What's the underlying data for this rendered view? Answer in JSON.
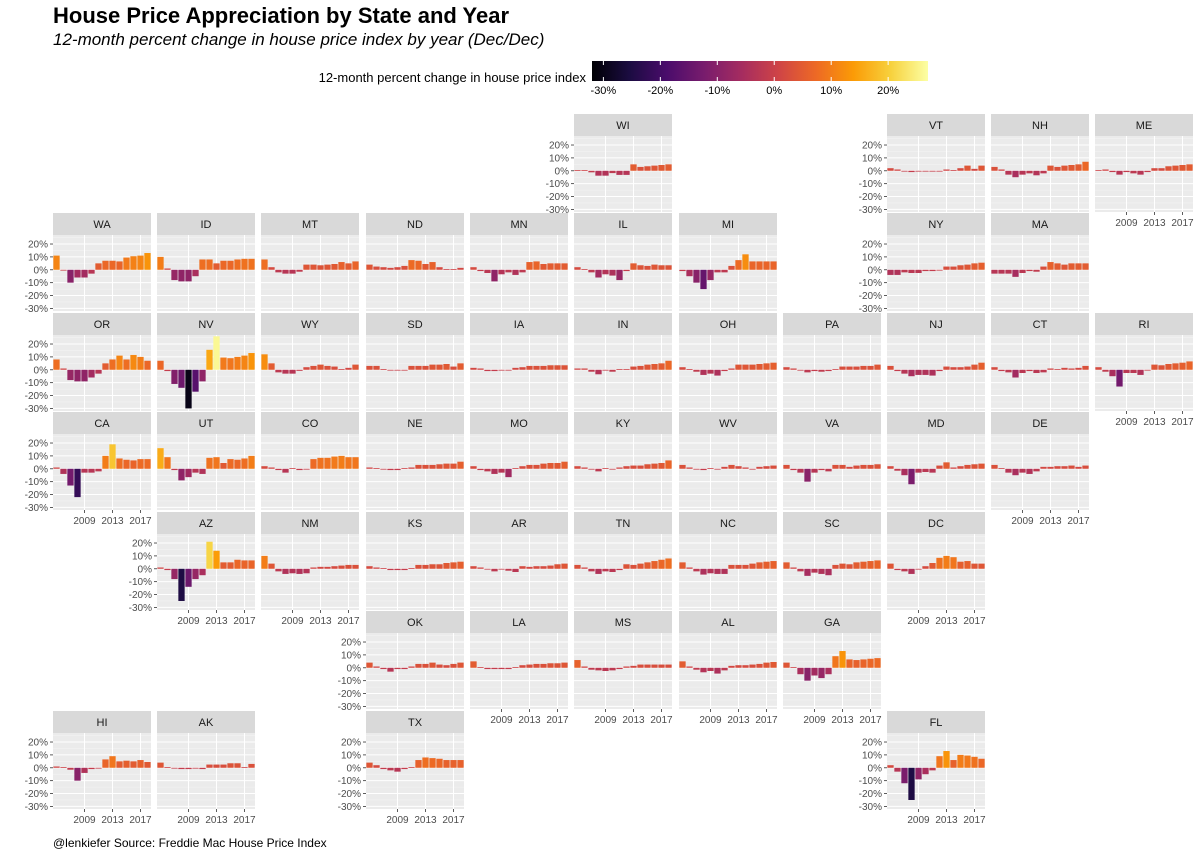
{
  "title": "House Price Appreciation by State and Year",
  "subtitle": "12-month percent change in house price index by year (Dec/Dec)",
  "caption": "@lenkiefer Source: Freddie Mac House Price Index",
  "legend": {
    "title": "12-month percent change in house price index",
    "tick_labels": [
      "-30%",
      "-20%",
      "-10%",
      "0%",
      "10%",
      "20%"
    ],
    "tick_values": [
      -30,
      -20,
      -10,
      0,
      10,
      20
    ],
    "range": [
      -32,
      27
    ],
    "colormap": "inferno",
    "colors": [
      "#000004",
      "#1b0c41",
      "#4a0c6b",
      "#781c6d",
      "#a52c60",
      "#cf4446",
      "#ed6925",
      "#fb9b06",
      "#f7d13d",
      "#fcffa4"
    ]
  },
  "chart_data": {
    "type": "bar",
    "layout": "faceted small multiples arranged as a US state grid map",
    "years": [
      2005,
      2006,
      2007,
      2008,
      2009,
      2010,
      2011,
      2012,
      2013,
      2014,
      2015,
      2016,
      2017,
      2018
    ],
    "x_tick_labels": [
      "2009",
      "2013",
      "2017"
    ],
    "y_tick_labels": [
      "20%",
      "10%",
      "0%",
      "-10%",
      "-20%",
      "-30%"
    ],
    "y_tick_values": [
      20,
      10,
      0,
      -10,
      -20,
      -30
    ],
    "ylim": [
      -32,
      27
    ],
    "grid": true,
    "legend_position": "top",
    "series": [
      {
        "name": "WI",
        "values": [
          0.5,
          0.6,
          -1.2,
          -3.8,
          -3.8,
          -1.8,
          -3.2,
          -3.2,
          5.0,
          3.0,
          3.5,
          4.0,
          4.5,
          5.0
        ]
      },
      {
        "name": "VT",
        "values": [
          2.0,
          1.0,
          -0.5,
          -1.0,
          -0.5,
          -0.3,
          -0.5,
          -0.2,
          1.0,
          0.5,
          2.0,
          4.0,
          1.5,
          4.0
        ]
      },
      {
        "name": "NH",
        "values": [
          3.0,
          1.0,
          -3.0,
          -5.0,
          -3.0,
          -2.0,
          -3.5,
          -2.0,
          4.0,
          3.0,
          4.0,
          4.5,
          5.0,
          7.0
        ]
      },
      {
        "name": "ME",
        "values": [
          0.5,
          1.0,
          -1.0,
          -3.0,
          -1.0,
          -2.0,
          -3.0,
          -1.0,
          2.0,
          2.0,
          3.5,
          4.0,
          4.5,
          5.0
        ]
      },
      {
        "name": "WA",
        "values": [
          11.0,
          0.0,
          -10.0,
          -6.0,
          -6.0,
          -3.0,
          5.0,
          7.0,
          7.0,
          6.5,
          9.5,
          10.5,
          11.0,
          13.0
        ]
      },
      {
        "name": "ID",
        "values": [
          10.0,
          1.0,
          -8.0,
          -9.0,
          -9.0,
          -5.0,
          8.0,
          8.0,
          5.0,
          7.0,
          7.0,
          8.0,
          8.5,
          8.5
        ]
      },
      {
        "name": "MT",
        "values": [
          8.0,
          2.0,
          -2.0,
          -3.0,
          -3.0,
          -1.5,
          4.0,
          4.0,
          3.5,
          4.0,
          4.5,
          6.0,
          5.0,
          6.5
        ]
      },
      {
        "name": "ND",
        "values": [
          4.0,
          2.5,
          2.0,
          1.5,
          2.0,
          3.0,
          7.5,
          7.0,
          4.5,
          6.0,
          2.0,
          0.5,
          0.5,
          1.5
        ]
      },
      {
        "name": "MN",
        "values": [
          2.0,
          -1.0,
          -2.5,
          -9.0,
          -3.5,
          -2.0,
          -4.0,
          -2.0,
          6.0,
          6.5,
          4.5,
          5.0,
          5.0,
          5.0
        ]
      },
      {
        "name": "IL",
        "values": [
          2.0,
          0.5,
          -2.0,
          -6.0,
          -3.5,
          -4.5,
          -8.0,
          -1.0,
          5.0,
          3.5,
          3.0,
          4.0,
          3.5,
          3.5
        ]
      },
      {
        "name": "MI",
        "values": [
          -1.0,
          -5.0,
          -10.0,
          -15.0,
          -8.0,
          -2.0,
          -2.0,
          3.0,
          7.5,
          12.0,
          6.5,
          6.5,
          6.5,
          6.5
        ]
      },
      {
        "name": "NY",
        "values": [
          -4.0,
          -4.0,
          -2.0,
          -2.5,
          -2.5,
          -1.0,
          -1.0,
          0.0,
          2.5,
          2.5,
          3.5,
          4.0,
          5.0,
          5.5
        ]
      },
      {
        "name": "MA",
        "values": [
          -3.0,
          -3.0,
          -3.0,
          -5.5,
          -2.5,
          -1.0,
          -1.5,
          2.5,
          6.0,
          5.0,
          4.0,
          5.0,
          5.0,
          5.0
        ]
      },
      {
        "name": "OR",
        "values": [
          8.0,
          1.0,
          -8.0,
          -9.0,
          -9.0,
          -6.0,
          -3.0,
          5.0,
          8.0,
          11.0,
          8.0,
          11.5,
          10.0,
          7.0
        ]
      },
      {
        "name": "NV",
        "values": [
          7.0,
          -1.0,
          -11.0,
          -14.0,
          -30.0,
          -17.0,
          -9.0,
          15.5,
          26.0,
          9.5,
          9.0,
          10.0,
          11.0,
          13.0
        ]
      },
      {
        "name": "WY",
        "values": [
          12.0,
          5.0,
          -2.0,
          -3.0,
          -3.0,
          -0.8,
          2.0,
          3.0,
          4.0,
          3.0,
          2.5,
          0.5,
          1.5,
          4.0
        ]
      },
      {
        "name": "SD",
        "values": [
          3.0,
          3.0,
          0.5,
          -0.2,
          -0.5,
          0.0,
          3.0,
          3.0,
          3.0,
          4.0,
          4.0,
          4.5,
          2.5,
          5.0
        ]
      },
      {
        "name": "IA",
        "values": [
          1.5,
          1.0,
          -1.0,
          -1.0,
          -0.5,
          -0.5,
          1.5,
          2.0,
          3.0,
          3.0,
          3.0,
          3.5,
          3.5,
          3.5
        ]
      },
      {
        "name": "IN",
        "values": [
          1.0,
          1.0,
          -1.5,
          -3.5,
          -0.5,
          -1.5,
          0.5,
          0.5,
          2.5,
          3.0,
          4.0,
          4.5,
          5.0,
          7.0
        ]
      },
      {
        "name": "OH",
        "values": [
          2.0,
          0.5,
          -1.5,
          -4.0,
          -3.0,
          -4.5,
          -1.0,
          1.0,
          4.0,
          4.0,
          4.0,
          4.5,
          5.0,
          5.5
        ]
      },
      {
        "name": "PA",
        "values": [
          2.0,
          1.0,
          -0.5,
          -2.0,
          -1.0,
          -1.5,
          -1.0,
          0.5,
          2.5,
          2.5,
          2.5,
          3.0,
          3.0,
          4.0
        ]
      },
      {
        "name": "NJ",
        "values": [
          3.0,
          -1.0,
          -3.0,
          -5.0,
          -4.0,
          -4.0,
          -4.5,
          -1.0,
          2.5,
          2.0,
          2.0,
          2.5,
          4.0,
          5.5
        ]
      },
      {
        "name": "CT",
        "values": [
          2.0,
          -1.0,
          -2.0,
          -6.0,
          -2.5,
          -1.0,
          -2.5,
          -2.0,
          1.0,
          0.5,
          1.5,
          1.0,
          1.5,
          3.0
        ]
      },
      {
        "name": "RI",
        "values": [
          2.0,
          -1.5,
          -5.0,
          -13.0,
          -2.5,
          -2.5,
          -4.0,
          -0.5,
          4.0,
          3.5,
          4.5,
          5.0,
          5.5,
          6.5
        ]
      },
      {
        "name": "CA",
        "values": [
          1.0,
          -4.0,
          -13.0,
          -22.0,
          -3.0,
          -3.0,
          -2.0,
          10.0,
          19.0,
          8.0,
          7.0,
          6.5,
          7.5,
          7.5
        ]
      },
      {
        "name": "UT",
        "values": [
          16.0,
          9.0,
          -1.0,
          -9.0,
          -6.5,
          -3.0,
          -4.0,
          8.5,
          9.0,
          4.5,
          7.5,
          7.0,
          8.0,
          10.0
        ]
      },
      {
        "name": "CO",
        "values": [
          2.0,
          1.0,
          -1.0,
          -3.0,
          0.5,
          -1.0,
          -0.5,
          7.5,
          8.5,
          8.5,
          9.5,
          10.0,
          9.0,
          9.0
        ]
      },
      {
        "name": "NE",
        "values": [
          1.0,
          0.5,
          -0.5,
          -1.0,
          -1.0,
          0.5,
          1.0,
          3.0,
          3.0,
          3.0,
          3.5,
          4.0,
          4.0,
          5.5
        ]
      },
      {
        "name": "MO",
        "values": [
          2.0,
          -1.0,
          -2.0,
          -4.0,
          -3.0,
          -6.5,
          0.5,
          2.0,
          3.0,
          3.0,
          4.0,
          4.5,
          4.5,
          5.5
        ]
      },
      {
        "name": "KY",
        "values": [
          2.0,
          1.0,
          -0.5,
          -2.0,
          0.5,
          -0.5,
          1.0,
          2.0,
          2.5,
          2.5,
          3.5,
          4.0,
          4.5,
          6.5
        ]
      },
      {
        "name": "WV",
        "values": [
          3.0,
          1.0,
          -0.5,
          -1.0,
          0.5,
          -0.5,
          1.5,
          3.0,
          2.0,
          1.0,
          -0.5,
          1.5,
          2.0,
          2.5
        ]
      },
      {
        "name": "VA",
        "values": [
          3.0,
          -1.0,
          -3.0,
          -10.0,
          -3.0,
          -1.0,
          -2.0,
          3.0,
          3.0,
          1.5,
          2.5,
          3.0,
          3.0,
          3.5
        ]
      },
      {
        "name": "MD",
        "values": [
          2.0,
          -1.5,
          -5.0,
          -12.0,
          -3.0,
          -2.5,
          -3.0,
          2.5,
          5.0,
          1.0,
          2.0,
          3.0,
          3.5,
          4.0
        ]
      },
      {
        "name": "DE",
        "values": [
          3.0,
          0.5,
          -3.0,
          -5.0,
          -3.0,
          -4.0,
          -2.0,
          1.5,
          1.5,
          2.0,
          2.0,
          2.5,
          1.5,
          2.5
        ]
      },
      {
        "name": "AZ",
        "values": [
          1.0,
          -1.0,
          -8.0,
          -25.0,
          -14.0,
          -8.0,
          -5.0,
          21.0,
          14.0,
          5.0,
          5.0,
          7.0,
          6.5,
          6.5
        ]
      },
      {
        "name": "NM",
        "values": [
          10.0,
          4.0,
          -2.0,
          -4.0,
          -3.5,
          -4.0,
          -3.5,
          1.0,
          1.5,
          1.5,
          2.0,
          2.5,
          3.0,
          3.0
        ]
      },
      {
        "name": "KS",
        "values": [
          2.0,
          1.0,
          0.5,
          -1.0,
          -1.0,
          -1.0,
          0.5,
          3.0,
          3.0,
          3.5,
          3.5,
          4.5,
          5.0,
          5.5
        ]
      },
      {
        "name": "AR",
        "values": [
          2.0,
          1.0,
          -0.5,
          -2.0,
          -0.5,
          -1.5,
          -2.5,
          2.0,
          1.5,
          2.0,
          2.0,
          2.5,
          3.5,
          4.0
        ]
      },
      {
        "name": "TN",
        "values": [
          3.0,
          1.0,
          -2.0,
          -4.0,
          -2.0,
          -2.5,
          -1.0,
          3.5,
          3.0,
          4.0,
          5.0,
          6.0,
          7.0,
          8.0
        ]
      },
      {
        "name": "NC",
        "values": [
          5.0,
          1.0,
          -2.0,
          -4.5,
          -3.5,
          -4.0,
          -4.0,
          3.0,
          3.0,
          3.0,
          4.0,
          5.0,
          5.5,
          6.0
        ]
      },
      {
        "name": "SC",
        "values": [
          5.0,
          1.0,
          -2.0,
          -5.5,
          -3.0,
          -4.0,
          -5.0,
          3.0,
          4.0,
          3.5,
          5.0,
          5.5,
          6.0,
          6.5
        ]
      },
      {
        "name": "DC",
        "values": [
          4.0,
          -1.0,
          -2.0,
          -4.0,
          -0.5,
          2.0,
          4.5,
          8.5,
          10.0,
          9.0,
          5.5,
          6.0,
          4.0,
          4.0
        ]
      },
      {
        "name": "OK",
        "values": [
          4.0,
          1.0,
          -1.0,
          -3.0,
          -1.0,
          -1.0,
          1.0,
          3.0,
          3.0,
          4.0,
          2.5,
          2.0,
          3.0,
          4.0
        ]
      },
      {
        "name": "LA",
        "values": [
          5.0,
          0.5,
          -1.0,
          -1.0,
          -1.0,
          -1.0,
          0.5,
          2.0,
          2.5,
          3.0,
          3.0,
          3.5,
          3.5,
          4.0
        ]
      },
      {
        "name": "MS",
        "values": [
          6.0,
          1.0,
          -1.5,
          -2.0,
          -2.5,
          -2.0,
          -1.0,
          1.0,
          1.5,
          2.5,
          2.5,
          2.5,
          2.5,
          2.5
        ]
      },
      {
        "name": "AL",
        "values": [
          5.0,
          1.0,
          -1.5,
          -3.5,
          -2.5,
          -4.5,
          -2.0,
          1.5,
          2.0,
          2.0,
          2.5,
          3.0,
          4.0,
          4.5
        ]
      },
      {
        "name": "GA",
        "values": [
          4.0,
          0.5,
          -5.0,
          -10.0,
          -6.0,
          -8.0,
          -5.0,
          9.0,
          13.0,
          6.5,
          6.0,
          6.5,
          7.0,
          7.5
        ]
      },
      {
        "name": "HI",
        "values": [
          1.0,
          0.5,
          -1.5,
          -10.0,
          -4.0,
          -1.0,
          -0.5,
          6.5,
          9.0,
          5.0,
          5.5,
          5.0,
          6.0,
          4.5
        ]
      },
      {
        "name": "AK",
        "values": [
          4.0,
          0.5,
          -0.5,
          -1.0,
          -1.0,
          -0.5,
          -1.0,
          2.5,
          2.5,
          2.5,
          3.5,
          3.5,
          0.5,
          3.0
        ]
      },
      {
        "name": "TX",
        "values": [
          4.0,
          2.0,
          -1.0,
          -2.0,
          -3.0,
          -1.0,
          0.5,
          6.0,
          8.0,
          7.5,
          7.0,
          6.0,
          6.0,
          6.0
        ]
      },
      {
        "name": "FL",
        "values": [
          2.0,
          -3.0,
          -12.0,
          -25.0,
          -9.0,
          -5.0,
          -2.0,
          9.0,
          13.0,
          6.0,
          10.0,
          9.5,
          8.5,
          7.0
        ]
      }
    ],
    "state_grid": [
      {
        "state": "WI",
        "row": 0,
        "col": 5
      },
      {
        "state": "VT",
        "row": 0,
        "col": 8
      },
      {
        "state": "NH",
        "row": 0,
        "col": 9
      },
      {
        "state": "ME",
        "row": 0,
        "col": 10
      },
      {
        "state": "WA",
        "row": 1,
        "col": 0
      },
      {
        "state": "ID",
        "row": 1,
        "col": 1
      },
      {
        "state": "MT",
        "row": 1,
        "col": 2
      },
      {
        "state": "ND",
        "row": 1,
        "col": 3
      },
      {
        "state": "MN",
        "row": 1,
        "col": 4
      },
      {
        "state": "IL",
        "row": 1,
        "col": 5
      },
      {
        "state": "MI",
        "row": 1,
        "col": 6
      },
      {
        "state": "NY",
        "row": 1,
        "col": 8
      },
      {
        "state": "MA",
        "row": 1,
        "col": 9
      },
      {
        "state": "OR",
        "row": 2,
        "col": 0
      },
      {
        "state": "NV",
        "row": 2,
        "col": 1
      },
      {
        "state": "WY",
        "row": 2,
        "col": 2
      },
      {
        "state": "SD",
        "row": 2,
        "col": 3
      },
      {
        "state": "IA",
        "row": 2,
        "col": 4
      },
      {
        "state": "IN",
        "row": 2,
        "col": 5
      },
      {
        "state": "OH",
        "row": 2,
        "col": 6
      },
      {
        "state": "PA",
        "row": 2,
        "col": 7
      },
      {
        "state": "NJ",
        "row": 2,
        "col": 8
      },
      {
        "state": "CT",
        "row": 2,
        "col": 9
      },
      {
        "state": "RI",
        "row": 2,
        "col": 10
      },
      {
        "state": "CA",
        "row": 3,
        "col": 0
      },
      {
        "state": "UT",
        "row": 3,
        "col": 1
      },
      {
        "state": "CO",
        "row": 3,
        "col": 2
      },
      {
        "state": "NE",
        "row": 3,
        "col": 3
      },
      {
        "state": "MO",
        "row": 3,
        "col": 4
      },
      {
        "state": "KY",
        "row": 3,
        "col": 5
      },
      {
        "state": "WV",
        "row": 3,
        "col": 6
      },
      {
        "state": "VA",
        "row": 3,
        "col": 7
      },
      {
        "state": "MD",
        "row": 3,
        "col": 8
      },
      {
        "state": "DE",
        "row": 3,
        "col": 9
      },
      {
        "state": "AZ",
        "row": 4,
        "col": 1
      },
      {
        "state": "NM",
        "row": 4,
        "col": 2
      },
      {
        "state": "KS",
        "row": 4,
        "col": 3
      },
      {
        "state": "AR",
        "row": 4,
        "col": 4
      },
      {
        "state": "TN",
        "row": 4,
        "col": 5
      },
      {
        "state": "NC",
        "row": 4,
        "col": 6
      },
      {
        "state": "SC",
        "row": 4,
        "col": 7
      },
      {
        "state": "DC",
        "row": 4,
        "col": 8
      },
      {
        "state": "OK",
        "row": 5,
        "col": 3
      },
      {
        "state": "LA",
        "row": 5,
        "col": 4
      },
      {
        "state": "MS",
        "row": 5,
        "col": 5
      },
      {
        "state": "AL",
        "row": 5,
        "col": 6
      },
      {
        "state": "GA",
        "row": 5,
        "col": 7
      },
      {
        "state": "HI",
        "row": 6,
        "col": 0
      },
      {
        "state": "AK",
        "row": 6,
        "col": 1
      },
      {
        "state": "TX",
        "row": 6,
        "col": 3
      },
      {
        "state": "FL",
        "row": 6,
        "col": 8
      }
    ]
  }
}
